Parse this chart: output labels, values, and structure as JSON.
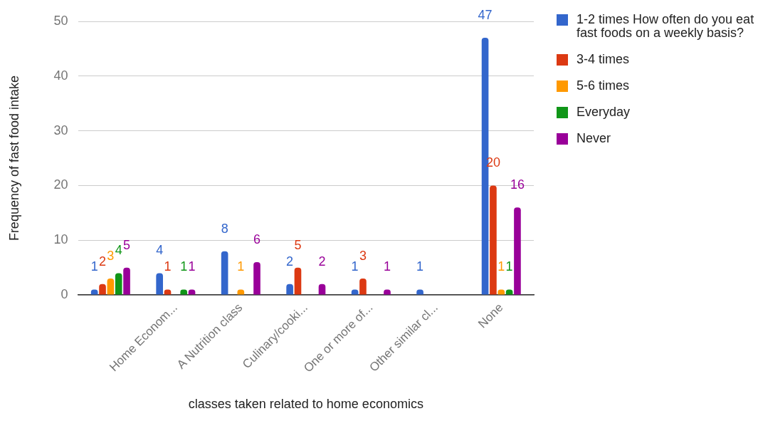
{
  "chart_data": {
    "type": "bar",
    "xlabel": "classes taken related to home economics",
    "ylabel": "Frequency of fast food intake",
    "categories": [
      null,
      "Home Econom...",
      "A Nutrition class",
      "Culinary/cooki...",
      "One or more of...",
      "Other similar cl...",
      "None"
    ],
    "series": [
      {
        "name": "1-2 times How often do you eat fast foods on a weekly basis?",
        "color": "#3366cc",
        "values": [
          1,
          4,
          8,
          2,
          1,
          1,
          47
        ]
      },
      {
        "name": "3-4 times",
        "color": "#dc3912",
        "values": [
          2,
          1,
          null,
          5,
          3,
          null,
          20
        ]
      },
      {
        "name": "5-6 times",
        "color": "#ff9900",
        "values": [
          3,
          null,
          1,
          null,
          null,
          null,
          1
        ]
      },
      {
        "name": "Everyday",
        "color": "#109618",
        "values": [
          4,
          1,
          null,
          null,
          null,
          null,
          1
        ]
      },
      {
        "name": "Never",
        "color": "#990099",
        "values": [
          5,
          1,
          6,
          2,
          1,
          null,
          16
        ]
      }
    ],
    "ylim": [
      0,
      50
    ],
    "yticks": [
      0,
      10,
      20,
      30,
      40,
      50
    ],
    "grid": "y",
    "legend": "right",
    "data_labels": true
  }
}
